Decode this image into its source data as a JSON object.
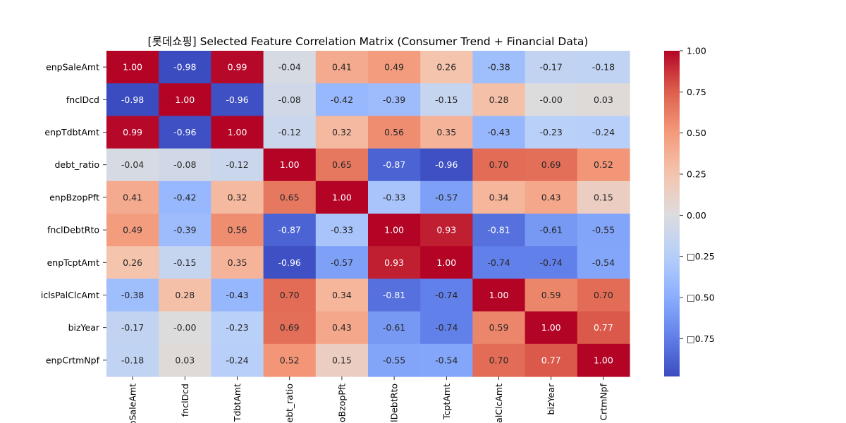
{
  "chart_data": {
    "type": "heatmap",
    "title": "[롯데쇼핑] Selected Feature Correlation Matrix (Consumer Trend + Financial Data)",
    "rows": [
      "enpSaleAmt",
      "fnclDcd",
      "enpTdbtAmt",
      "debt_ratio",
      "enpBzopPft",
      "fnclDebtRto",
      "enpTcptAmt",
      "iclsPalClcAmt",
      "bizYear",
      "enpCrtmNpf"
    ],
    "columns_shown": [
      "pSaleAmt",
      "fnclDcd",
      "TdbtAmt",
      "ebt_ratio",
      "oBzopPft",
      "lDebtRto",
      "TcptAmt",
      "alClcAmt",
      "bizYear",
      "CrtmNpf"
    ],
    "values": [
      [
        1.0,
        -0.98,
        0.99,
        -0.04,
        0.41,
        0.49,
        0.26,
        -0.38,
        -0.17,
        -0.18
      ],
      [
        -0.98,
        1.0,
        -0.96,
        -0.08,
        -0.42,
        -0.39,
        -0.15,
        0.28,
        -0.0,
        0.03
      ],
      [
        0.99,
        -0.96,
        1.0,
        -0.12,
        0.32,
        0.56,
        0.35,
        -0.43,
        -0.23,
        -0.24
      ],
      [
        -0.04,
        -0.08,
        -0.12,
        1.0,
        0.65,
        -0.87,
        -0.96,
        0.7,
        0.69,
        0.52
      ],
      [
        0.41,
        -0.42,
        0.32,
        0.65,
        1.0,
        -0.33,
        -0.57,
        0.34,
        0.43,
        0.15
      ],
      [
        0.49,
        -0.39,
        0.56,
        -0.87,
        -0.33,
        1.0,
        0.93,
        -0.81,
        -0.61,
        -0.55
      ],
      [
        0.26,
        -0.15,
        0.35,
        -0.96,
        -0.57,
        0.93,
        1.0,
        -0.74,
        -0.74,
        -0.54
      ],
      [
        -0.38,
        0.28,
        -0.43,
        0.7,
        0.34,
        -0.81,
        -0.74,
        1.0,
        0.59,
        0.7
      ],
      [
        -0.17,
        -0.0,
        -0.23,
        0.69,
        0.43,
        -0.61,
        -0.74,
        0.59,
        1.0,
        0.77
      ],
      [
        -0.18,
        0.03,
        -0.24,
        0.52,
        0.15,
        -0.55,
        -0.54,
        0.7,
        0.77,
        1.0
      ]
    ],
    "value_labels": [
      [
        "1.00",
        "-0.98",
        "0.99",
        "-0.04",
        "0.41",
        "0.49",
        "0.26",
        "-0.38",
        "-0.17",
        "-0.18"
      ],
      [
        "-0.98",
        "1.00",
        "-0.96",
        "-0.08",
        "-0.42",
        "-0.39",
        "-0.15",
        "0.28",
        "-0.00",
        "0.03"
      ],
      [
        "0.99",
        "-0.96",
        "1.00",
        "-0.12",
        "0.32",
        "0.56",
        "0.35",
        "-0.43",
        "-0.23",
        "-0.24"
      ],
      [
        "-0.04",
        "-0.08",
        "-0.12",
        "1.00",
        "0.65",
        "-0.87",
        "-0.96",
        "0.70",
        "0.69",
        "0.52"
      ],
      [
        "0.41",
        "-0.42",
        "0.32",
        "0.65",
        "1.00",
        "-0.33",
        "-0.57",
        "0.34",
        "0.43",
        "0.15"
      ],
      [
        "0.49",
        "-0.39",
        "0.56",
        "-0.87",
        "-0.33",
        "1.00",
        "0.93",
        "-0.81",
        "-0.61",
        "-0.55"
      ],
      [
        "0.26",
        "-0.15",
        "0.35",
        "-0.96",
        "-0.57",
        "0.93",
        "1.00",
        "-0.74",
        "-0.74",
        "-0.54"
      ],
      [
        "-0.38",
        "0.28",
        "-0.43",
        "0.70",
        "0.34",
        "-0.81",
        "-0.74",
        "1.00",
        "0.59",
        "0.70"
      ],
      [
        "-0.17",
        "-0.00",
        "-0.23",
        "0.69",
        "0.43",
        "-0.61",
        "-0.74",
        "0.59",
        "1.00",
        "0.77"
      ],
      [
        "-0.18",
        "0.03",
        "-0.24",
        "0.52",
        "0.15",
        "-0.55",
        "-0.54",
        "0.70",
        "0.77",
        "1.00"
      ]
    ],
    "colormap": "coolwarm",
    "vmin": -0.98,
    "vmax": 1.0,
    "colorbar_ticks": [
      1.0,
      0.75,
      0.5,
      0.25,
      0.0,
      -0.25,
      -0.5,
      -0.75
    ],
    "colorbar_labels": [
      "1.00",
      "0.75",
      "0.50",
      "0.25",
      "0.00",
      "□0.25",
      "□0.50",
      "□0.75"
    ],
    "colorbar_colors": {
      "low": "#3b4cc0",
      "mid": "#dddcdc",
      "high": "#b40426"
    },
    "legend_position": "right"
  }
}
